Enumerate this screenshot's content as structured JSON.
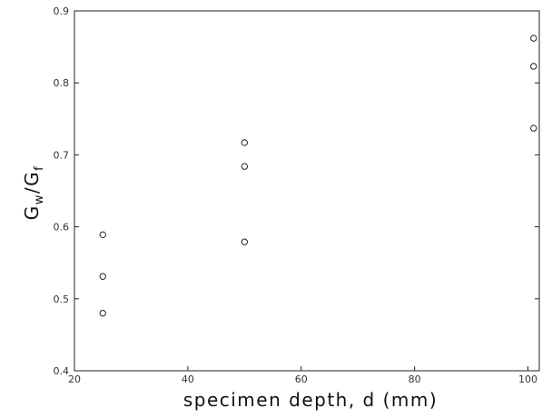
{
  "chart_data": {
    "type": "scatter",
    "xlabel": "specimen depth, d (mm)",
    "ylabel_main": "G",
    "ylabel_sub1": "w",
    "ylabel_slash": "/G",
    "ylabel_sub2": "f",
    "xlim": [
      20,
      102
    ],
    "ylim": [
      0.4,
      0.9
    ],
    "xticks": [
      20,
      40,
      60,
      80,
      100
    ],
    "xtick_labels": [
      "20",
      "40",
      "60",
      "80",
      "100"
    ],
    "yticks": [
      0.4,
      0.5,
      0.6,
      0.7,
      0.8,
      0.9
    ],
    "ytick_labels": [
      "0.4",
      "0.5",
      "0.6",
      "0.7",
      "0.8",
      "0.9"
    ],
    "grid": false,
    "marker": "open-circle",
    "points": [
      {
        "x": 25,
        "y": 0.589
      },
      {
        "x": 25,
        "y": 0.531
      },
      {
        "x": 25,
        "y": 0.48
      },
      {
        "x": 50,
        "y": 0.717
      },
      {
        "x": 50,
        "y": 0.684
      },
      {
        "x": 50,
        "y": 0.579
      },
      {
        "x": 101,
        "y": 0.862
      },
      {
        "x": 101,
        "y": 0.823
      },
      {
        "x": 101,
        "y": 0.737
      }
    ],
    "colors": {
      "axis": "#222222",
      "marker": "#222222"
    }
  }
}
